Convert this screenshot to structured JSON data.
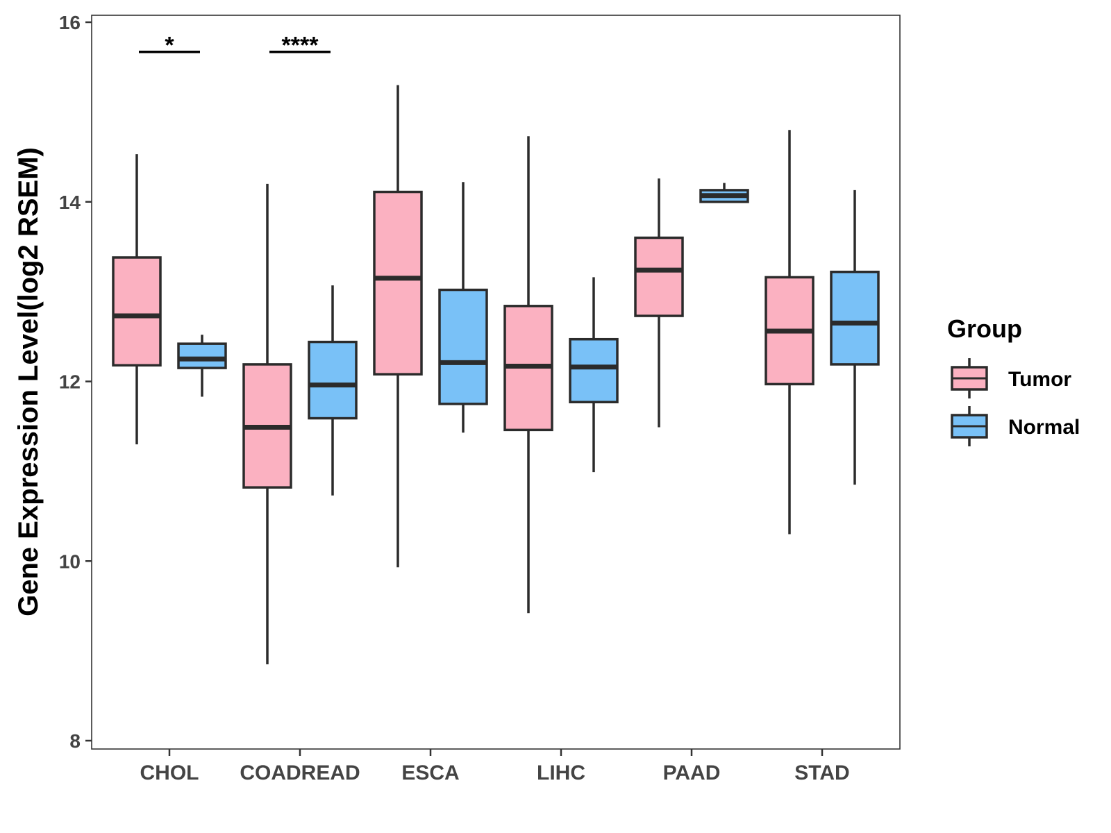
{
  "chart_data": {
    "type": "boxplot",
    "title": "",
    "xlabel": "",
    "ylabel": "Gene Expression Level(log2 RSEM)",
    "ylim": [
      8,
      16
    ],
    "yticks": [
      8,
      10,
      12,
      14,
      16
    ],
    "categories": [
      "CHOL",
      "COADREAD",
      "ESCA",
      "LIHC",
      "PAAD",
      "STAD"
    ],
    "legend": {
      "title": "Group",
      "position": "right",
      "entries": [
        "Tumor",
        "Normal"
      ]
    },
    "colors": {
      "Tumor": "#fbb1c1",
      "Normal": "#79c1f7",
      "outline": "#2b2b2b"
    },
    "series": [
      {
        "name": "Tumor",
        "boxes": [
          {
            "category": "CHOL",
            "whisker_low": 11.3,
            "q1": 12.18,
            "median": 12.73,
            "q3": 13.38,
            "whisker_high": 14.53
          },
          {
            "category": "COADREAD",
            "whisker_low": 8.85,
            "q1": 10.82,
            "median": 11.49,
            "q3": 12.19,
            "whisker_high": 14.2
          },
          {
            "category": "ESCA",
            "whisker_low": 9.93,
            "q1": 12.08,
            "median": 13.15,
            "q3": 14.11,
            "whisker_high": 15.3
          },
          {
            "category": "LIHC",
            "whisker_low": 9.42,
            "q1": 11.46,
            "median": 12.17,
            "q3": 12.84,
            "whisker_high": 14.73
          },
          {
            "category": "PAAD",
            "whisker_low": 11.49,
            "q1": 12.73,
            "median": 13.24,
            "q3": 13.6,
            "whisker_high": 14.26
          },
          {
            "category": "STAD",
            "whisker_low": 10.3,
            "q1": 11.97,
            "median": 12.56,
            "q3": 13.16,
            "whisker_high": 14.8
          }
        ]
      },
      {
        "name": "Normal",
        "boxes": [
          {
            "category": "CHOL",
            "whisker_low": 11.83,
            "q1": 12.15,
            "median": 12.25,
            "q3": 12.42,
            "whisker_high": 12.52
          },
          {
            "category": "COADREAD",
            "whisker_low": 10.73,
            "q1": 11.59,
            "median": 11.96,
            "q3": 12.44,
            "whisker_high": 13.07
          },
          {
            "category": "ESCA",
            "whisker_low": 11.43,
            "q1": 11.75,
            "median": 12.21,
            "q3": 13.02,
            "whisker_high": 14.22
          },
          {
            "category": "LIHC",
            "whisker_low": 10.99,
            "q1": 11.77,
            "median": 12.16,
            "q3": 12.47,
            "whisker_high": 13.16
          },
          {
            "category": "PAAD",
            "whisker_low": 14.0,
            "q1": 14.0,
            "median": 14.07,
            "q3": 14.13,
            "whisker_high": 14.21
          },
          {
            "category": "STAD",
            "whisker_low": 10.85,
            "q1": 12.19,
            "median": 12.65,
            "q3": 13.22,
            "whisker_high": 14.13
          }
        ]
      }
    ],
    "annotations": [
      {
        "category": "CHOL",
        "label": "*",
        "y": 15.67
      },
      {
        "category": "COADREAD",
        "label": "****",
        "y": 15.67
      }
    ]
  }
}
